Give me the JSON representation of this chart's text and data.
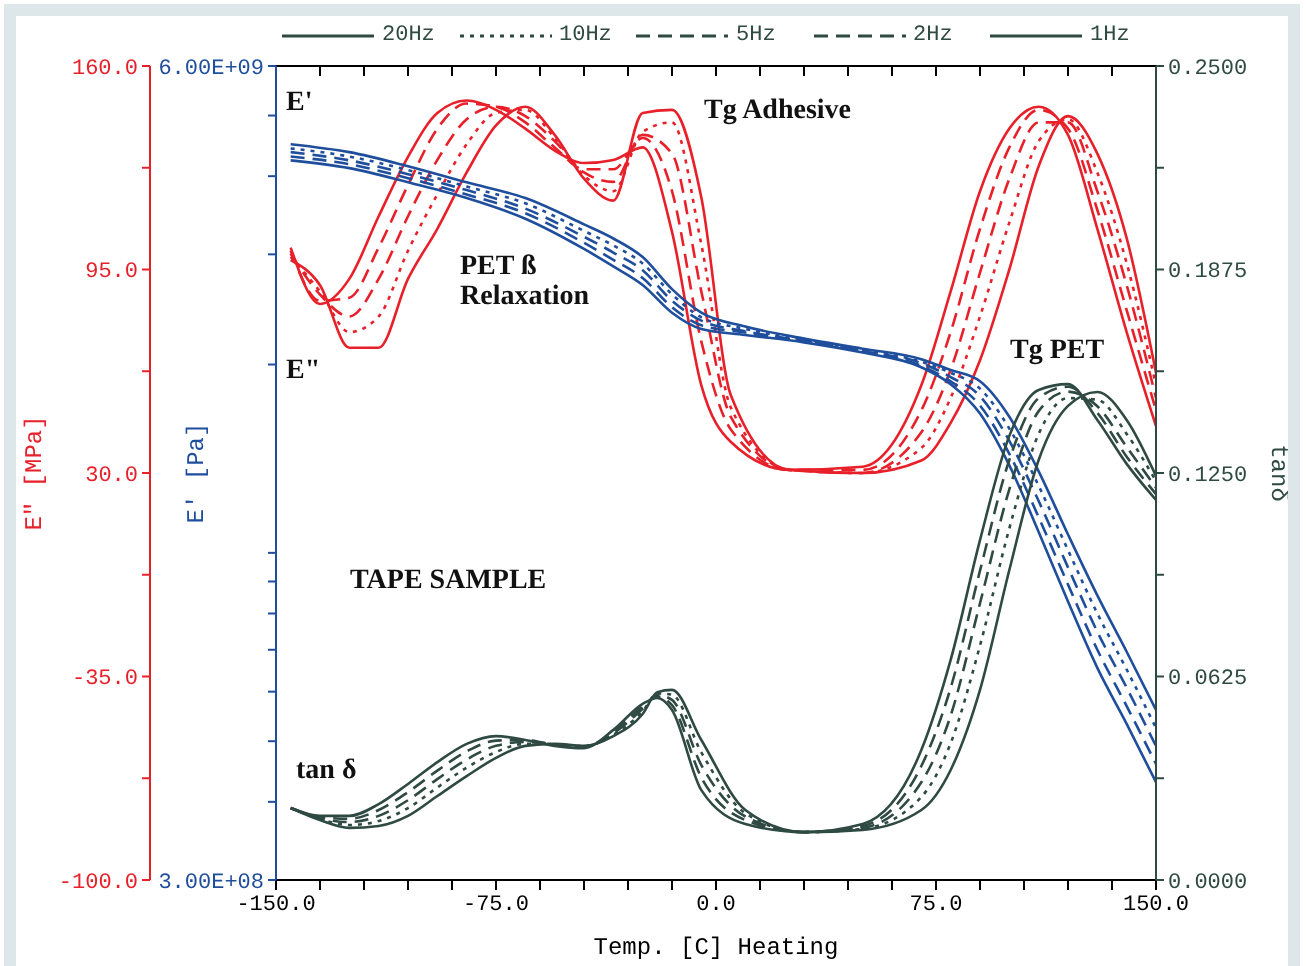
{
  "chart_data": {
    "type": "line",
    "xlabel": "Temp. [C] Heating",
    "ylabel": "E\" [MPa]",
    "y2label": "E' [Pa]",
    "y3label": "tanδ",
    "xlim": [
      -150,
      150
    ],
    "xticks": [
      {
        "value": -150,
        "label": "-150.0"
      },
      {
        "value": -135,
        "label": null
      },
      {
        "value": -120,
        "label": null
      },
      {
        "value": -105,
        "label": null
      },
      {
        "value": -90,
        "label": null
      },
      {
        "value": -75,
        "label": "-75.0"
      },
      {
        "value": -60,
        "label": null
      },
      {
        "value": -45,
        "label": null
      },
      {
        "value": -30,
        "label": null
      },
      {
        "value": -15,
        "label": null
      },
      {
        "value": 0,
        "label": "0.0"
      },
      {
        "value": 15,
        "label": null
      },
      {
        "value": 30,
        "label": null
      },
      {
        "value": 45,
        "label": null
      },
      {
        "value": 60,
        "label": null
      },
      {
        "value": 75,
        "label": "75.0"
      },
      {
        "value": 90,
        "label": null
      },
      {
        "value": 105,
        "label": null
      },
      {
        "value": 120,
        "label": null
      },
      {
        "value": 135,
        "label": null
      },
      {
        "value": 150,
        "label": "150.0"
      }
    ],
    "ylim": [
      -100,
      160
    ],
    "yticks": [
      {
        "value": 160,
        "label": "160.0"
      },
      {
        "value": 127.5,
        "label": null
      },
      {
        "value": 95,
        "label": "95.0"
      },
      {
        "value": 62.5,
        "label": null
      },
      {
        "value": 30,
        "label": "30.0"
      },
      {
        "value": -2.5,
        "label": null
      },
      {
        "value": -35,
        "label": "-35.0"
      },
      {
        "value": -67.5,
        "label": null
      },
      {
        "value": -100,
        "label": "-100.0"
      }
    ],
    "y2lim": [
      300000000,
      6000000000
    ],
    "y2ticks": [
      {
        "value": 6000000000,
        "label": "6.00E+09"
      },
      {
        "value": 5000000000,
        "label": null
      },
      {
        "value": 4000000000,
        "label": null
      },
      {
        "value": 3000000000,
        "label": null
      },
      {
        "value": 2000000000,
        "label": null
      },
      {
        "value": 1000000000,
        "label": null
      },
      {
        "value": 900000000,
        "label": null
      },
      {
        "value": 800000000,
        "label": null
      },
      {
        "value": 700000000,
        "label": null
      },
      {
        "value": 600000000,
        "label": null
      },
      {
        "value": 500000000,
        "label": null
      },
      {
        "value": 400000000,
        "label": null
      },
      {
        "value": 300000000,
        "label": "3.00E+08"
      }
    ],
    "y3lim": [
      0,
      0.25
    ],
    "y3ticks": [
      {
        "value": 0.25,
        "label": "0.2500"
      },
      {
        "value": 0.21875,
        "label": null
      },
      {
        "value": 0.1875,
        "label": "0.1875"
      },
      {
        "value": 0.15625,
        "label": null
      },
      {
        "value": 0.125,
        "label": "0.1250"
      },
      {
        "value": 0.09375,
        "label": null
      },
      {
        "value": 0.0625,
        "label": "0.0625"
      },
      {
        "value": 0.03125,
        "label": null
      },
      {
        "value": 0,
        "label": "0.0000"
      }
    ],
    "log": "y2",
    "legend": "top",
    "annotations": [
      "E'",
      "E\"",
      "PET ß Relaxation",
      "Tg Adhesive",
      "Tg PET",
      "TAPE SAMPLE",
      "tan δ"
    ],
    "series": [
      {
        "axis": "y",
        "color": "#e8202a",
        "line_style": "solid",
        "x": [
          -145,
          -135,
          -125,
          -115,
          -105,
          -95,
          -85,
          -75,
          -65,
          -55,
          -45,
          -35,
          -25,
          -15,
          -5,
          5,
          25,
          50,
          70,
          80,
          90,
          100,
          110,
          120,
          130,
          140,
          150
        ],
        "values": [
          98,
          90,
          70,
          70,
          92,
          108,
          126,
          141,
          147,
          138,
          124,
          117,
          145,
          146,
          118,
          55,
          31,
          30,
          34,
          46,
          66,
          95,
          128,
          144,
          132,
          105,
          62
        ]
      },
      {
        "axis": "y",
        "color": "#e8202a",
        "line_style": "dotted",
        "x": [
          -145,
          -135,
          -125,
          -115,
          -105,
          -95,
          -85,
          -75,
          -65,
          -55,
          -45,
          -35,
          -25,
          -15,
          -5,
          5,
          25,
          50,
          70,
          80,
          90,
          100,
          110,
          120,
          130,
          140,
          150
        ],
        "values": [
          99,
          88,
          75,
          80,
          101,
          119,
          135,
          145,
          146,
          137,
          125,
          120,
          139,
          142,
          103,
          51,
          31,
          30,
          38,
          54,
          80,
          110,
          136,
          143,
          126,
          97,
          58
        ]
      },
      {
        "axis": "y",
        "color": "#e8202a",
        "line_style": "dashed",
        "x": [
          -145,
          -135,
          -125,
          -115,
          -105,
          -95,
          -85,
          -75,
          -65,
          -55,
          -45,
          -35,
          -25,
          -15,
          -5,
          5,
          25,
          50,
          70,
          80,
          90,
          100,
          110,
          120,
          130,
          140,
          150
        ],
        "values": [
          100,
          87,
          80,
          92,
          112,
          130,
          143,
          147,
          144,
          136,
          126,
          123,
          138,
          132,
          88,
          48,
          31,
          30,
          43,
          63,
          94,
          124,
          142,
          142,
          120,
          90,
          54
        ]
      },
      {
        "axis": "y",
        "color": "#e8202a",
        "line_style": "dashed",
        "x": [
          -145,
          -135,
          -125,
          -115,
          -105,
          -95,
          -85,
          -75,
          -65,
          -55,
          -45,
          -35,
          -25,
          -15,
          -5,
          5,
          25,
          50,
          70,
          80,
          90,
          100,
          110,
          120,
          130,
          140,
          150
        ],
        "values": [
          101,
          85,
          86,
          102,
          122,
          140,
          148,
          147,
          142,
          134,
          127,
          127,
          137,
          120,
          72,
          44,
          31,
          31,
          50,
          75,
          108,
          134,
          146,
          140,
          114,
          82,
          50
        ]
      },
      {
        "axis": "y",
        "color": "#e8202a",
        "line_style": "solid",
        "x": [
          -145,
          -135,
          -125,
          -115,
          -105,
          -95,
          -85,
          -75,
          -65,
          -55,
          -45,
          -35,
          -25,
          -15,
          -5,
          5,
          25,
          50,
          70,
          80,
          90,
          100,
          110,
          120,
          130,
          140,
          150
        ],
        "values": [
          102,
          84,
          92,
          112,
          131,
          145,
          149,
          146,
          140,
          133,
          129,
          130,
          134,
          107,
          58,
          40,
          31,
          32,
          58,
          88,
          120,
          140,
          147,
          138,
          108,
          75,
          45
        ]
      },
      {
        "axis": "y2",
        "color": "#1f4e9c",
        "line_style": "solid",
        "x": [
          -145,
          -125,
          -105,
          -85,
          -65,
          -45,
          -35,
          -25,
          -15,
          -5,
          10,
          30,
          50,
          70,
          80,
          90,
          100,
          110,
          120,
          130,
          140,
          150
        ],
        "values": [
          4500000000,
          4370000000,
          4150000000,
          3910000000,
          3690000000,
          3350000000,
          3180000000,
          2970000000,
          2640000000,
          2420000000,
          2300000000,
          2200000000,
          2120000000,
          2040000000,
          1960000000,
          1880000000,
          1650000000,
          1350000000,
          1070000000,
          855000000,
          695000000,
          561000000
        ]
      },
      {
        "axis": "y2",
        "color": "#1f4e9c",
        "line_style": "dotted",
        "x": [
          -145,
          -125,
          -105,
          -85,
          -65,
          -45,
          -35,
          -25,
          -15,
          -5,
          10,
          30,
          50,
          70,
          80,
          90,
          100,
          110,
          120,
          130,
          140,
          150
        ],
        "values": [
          4430000000,
          4300000000,
          4090000000,
          3850000000,
          3620000000,
          3270000000,
          3100000000,
          2900000000,
          2590000000,
          2380000000,
          2280000000,
          2190000000,
          2110000000,
          2020000000,
          1940000000,
          1830000000,
          1580000000,
          1280000000,
          1010000000,
          800000000,
          651000000,
          525000000
        ]
      },
      {
        "axis": "y2",
        "color": "#1f4e9c",
        "line_style": "dashed",
        "x": [
          -145,
          -125,
          -105,
          -85,
          -65,
          -45,
          -35,
          -25,
          -15,
          -5,
          10,
          30,
          50,
          70,
          80,
          90,
          100,
          110,
          120,
          130,
          140,
          150
        ],
        "values": [
          4370000000,
          4240000000,
          4030000000,
          3800000000,
          3550000000,
          3200000000,
          3020000000,
          2830000000,
          2530000000,
          2350000000,
          2260000000,
          2180000000,
          2100000000,
          2010000000,
          1910000000,
          1780000000,
          1510000000,
          1210000000,
          948000000,
          748000000,
          609000000,
          491000000
        ]
      },
      {
        "axis": "y2",
        "color": "#1f4e9c",
        "line_style": "dashed",
        "x": [
          -145,
          -125,
          -105,
          -85,
          -65,
          -45,
          -35,
          -25,
          -15,
          -5,
          10,
          30,
          50,
          70,
          80,
          90,
          100,
          110,
          120,
          130,
          140,
          150
        ],
        "values": [
          4300000000,
          4180000000,
          3970000000,
          3740000000,
          3490000000,
          3130000000,
          2940000000,
          2750000000,
          2470000000,
          2310000000,
          2250000000,
          2180000000,
          2100000000,
          1990000000,
          1880000000,
          1720000000,
          1440000000,
          1140000000,
          890000000,
          700000000,
          569000000,
          460000000
        ]
      },
      {
        "axis": "y2",
        "color": "#1f4e9c",
        "line_style": "solid",
        "x": [
          -145,
          -125,
          -105,
          -85,
          -65,
          -45,
          -35,
          -25,
          -15,
          -5,
          10,
          30,
          50,
          70,
          80,
          90,
          100,
          110,
          120,
          130,
          140,
          150
        ],
        "values": [
          4240000000,
          4120000000,
          3910000000,
          3690000000,
          3420000000,
          3060000000,
          2870000000,
          2680000000,
          2420000000,
          2280000000,
          2230000000,
          2170000000,
          2090000000,
          1980000000,
          1860000000,
          1670000000,
          1380000000,
          1080000000,
          836000000,
          655000000,
          533000000,
          430000000
        ]
      },
      {
        "name": "20Hz",
        "axis": "y3",
        "color": "#2f4a42",
        "line_style": "solid",
        "x": [
          -145,
          -135,
          -125,
          -115,
          -105,
          -95,
          -85,
          -75,
          -65,
          -55,
          -45,
          -35,
          -25,
          -20,
          -15,
          -5,
          10,
          30,
          50,
          70,
          80,
          90,
          100,
          110,
          120,
          130,
          140,
          150
        ],
        "values": [
          0.0221,
          0.0184,
          0.016,
          0.0166,
          0.0197,
          0.0258,
          0.0319,
          0.0375,
          0.0412,
          0.0418,
          0.0412,
          0.0442,
          0.051,
          0.0577,
          0.0584,
          0.043,
          0.0215,
          0.0147,
          0.0154,
          0.0215,
          0.0338,
          0.0584,
          0.0952,
          0.129,
          0.1456,
          0.1499,
          0.1413,
          0.1241
        ]
      },
      {
        "name": "10Hz",
        "axis": "y3",
        "color": "#2f4a42",
        "line_style": "dotted",
        "x": [
          -145,
          -135,
          -125,
          -115,
          -105,
          -95,
          -85,
          -75,
          -65,
          -55,
          -45,
          -35,
          -25,
          -20,
          -15,
          -5,
          10,
          30,
          50,
          70,
          80,
          90,
          100,
          110,
          120,
          130,
          140,
          150
        ],
        "values": [
          0.0221,
          0.0187,
          0.0169,
          0.0181,
          0.0221,
          0.0284,
          0.0345,
          0.0393,
          0.0418,
          0.0417,
          0.0411,
          0.0446,
          0.0518,
          0.0573,
          0.0569,
          0.0392,
          0.0205,
          0.0147,
          0.0157,
          0.0255,
          0.042,
          0.072,
          0.108,
          0.137,
          0.148,
          0.1475,
          0.137,
          0.1225
        ]
      },
      {
        "name": "5Hz",
        "axis": "y3",
        "color": "#2f4a42",
        "line_style": "dashed",
        "x": [
          -145,
          -135,
          -125,
          -115,
          -105,
          -95,
          -85,
          -75,
          -65,
          -55,
          -45,
          -35,
          -25,
          -20,
          -15,
          -5,
          10,
          30,
          50,
          70,
          80,
          90,
          100,
          110,
          120,
          130,
          140,
          150
        ],
        "values": [
          0.0221,
          0.019,
          0.0178,
          0.0197,
          0.0245,
          0.031,
          0.037,
          0.0412,
          0.0424,
          0.0416,
          0.041,
          0.0451,
          0.0526,
          0.0568,
          0.0553,
          0.0353,
          0.0195,
          0.0147,
          0.016,
          0.03,
          0.0505,
          0.085,
          0.12,
          0.144,
          0.15,
          0.1455,
          0.133,
          0.1205
        ]
      },
      {
        "name": "2Hz",
        "axis": "y3",
        "color": "#2f4a42",
        "line_style": "dashed",
        "x": [
          -145,
          -135,
          -125,
          -115,
          -105,
          -95,
          -85,
          -75,
          -65,
          -55,
          -45,
          -35,
          -25,
          -20,
          -15,
          -5,
          10,
          30,
          50,
          70,
          80,
          90,
          100,
          110,
          120,
          130,
          140,
          150
        ],
        "values": [
          0.0221,
          0.0194,
          0.0188,
          0.0215,
          0.027,
          0.0336,
          0.0395,
          0.0428,
          0.043,
          0.0415,
          0.0408,
          0.0456,
          0.0533,
          0.0563,
          0.0537,
          0.0315,
          0.0184,
          0.0147,
          0.0166,
          0.035,
          0.059,
          0.095,
          0.129,
          0.148,
          0.1515,
          0.1435,
          0.13,
          0.1185
        ]
      },
      {
        "name": "1Hz",
        "axis": "y3",
        "color": "#2f4a42",
        "line_style": "solid",
        "x": [
          -145,
          -135,
          -125,
          -115,
          -105,
          -95,
          -85,
          -75,
          -65,
          -55,
          -45,
          -35,
          -25,
          -20,
          -15,
          -5,
          10,
          30,
          50,
          70,
          80,
          90,
          100,
          110,
          120,
          130,
          140,
          150
        ],
        "values": [
          0.0221,
          0.0197,
          0.0197,
          0.0233,
          0.0295,
          0.0362,
          0.0418,
          0.0442,
          0.043,
          0.0412,
          0.0405,
          0.0461,
          0.0541,
          0.0559,
          0.0522,
          0.0276,
          0.0172,
          0.0147,
          0.0172,
          0.0399,
          0.0676,
          0.1044,
          0.1364,
          0.1505,
          0.1523,
          0.1413,
          0.1278,
          0.1167
        ]
      }
    ]
  }
}
